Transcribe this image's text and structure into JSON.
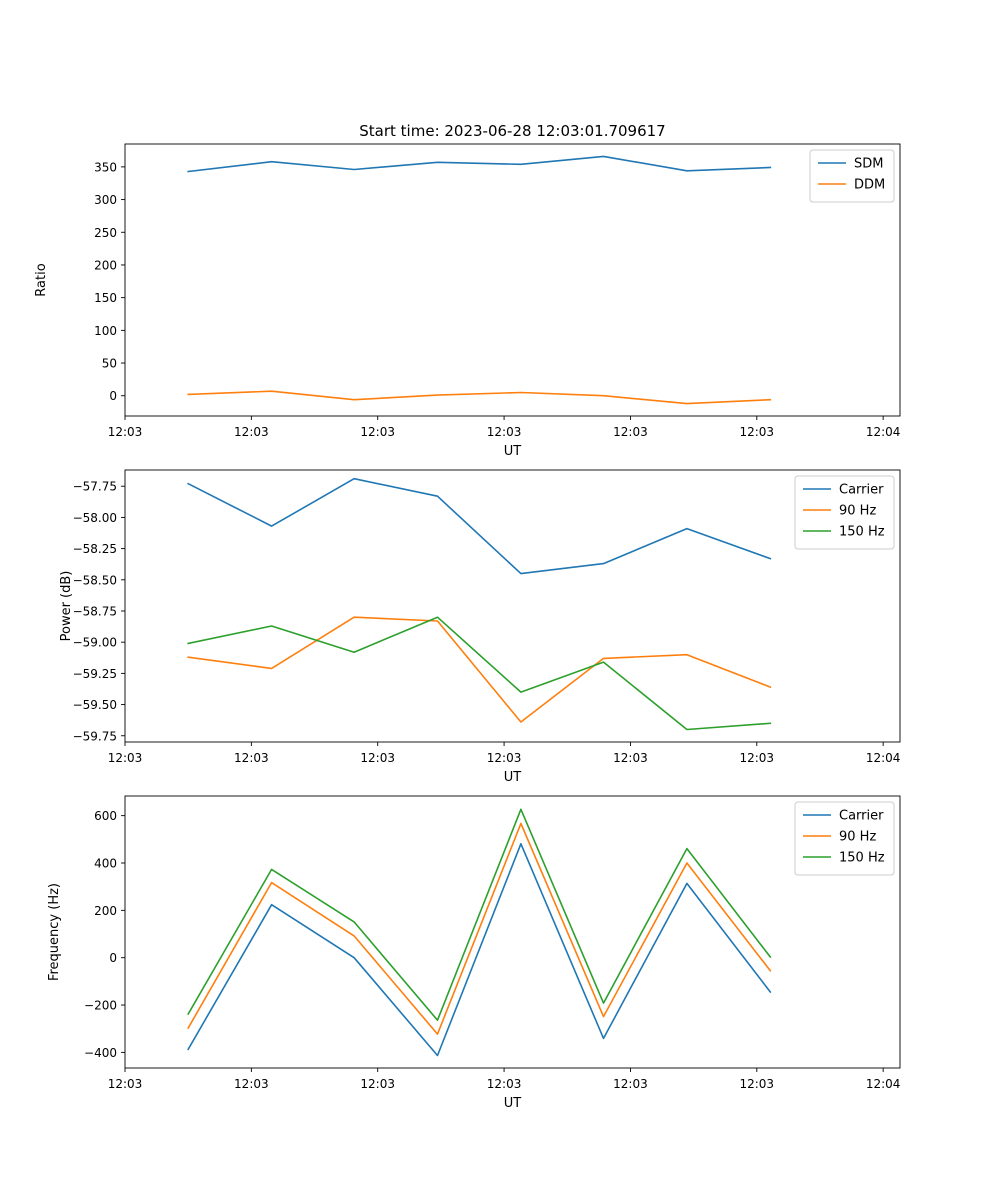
{
  "figure": {
    "title": "Start time: 2023-06-28 12:03:01.709617"
  },
  "chart_data": [
    {
      "type": "line",
      "xlabel": "UT",
      "ylabel": "Ratio",
      "ylim": [
        -31,
        385
      ],
      "yticks": [
        0,
        50,
        100,
        150,
        200,
        250,
        300,
        350
      ],
      "xlim": [
        0,
        9.2
      ],
      "xticks": [
        0,
        1.5,
        3,
        4.5,
        6,
        7.5,
        9
      ],
      "xtick_labels": [
        "12:03",
        "12:03",
        "12:03",
        "12:03",
        "12:03",
        "12:03",
        "12:04"
      ],
      "x": [
        0.75,
        1.74,
        2.72,
        3.71,
        4.7,
        5.68,
        6.67,
        7.66
      ],
      "grid": false,
      "legend": "upper right",
      "series": [
        {
          "name": "SDM",
          "color": "#1f77b4",
          "values": [
            343,
            358,
            346,
            357,
            354,
            366,
            344,
            349
          ]
        },
        {
          "name": "DDM",
          "color": "#ff7f0e",
          "values": [
            2,
            7,
            -6,
            1,
            5,
            0,
            -12,
            -6
          ]
        }
      ]
    },
    {
      "type": "line",
      "xlabel": "UT",
      "ylabel": "Power (dB)",
      "ylim": [
        -59.8,
        -57.62
      ],
      "yticks": [
        -59.75,
        -59.5,
        -59.25,
        -59.0,
        -58.75,
        -58.5,
        -58.25,
        -58.0,
        -57.75
      ],
      "ytick_labels": [
        "−59.75",
        "−59.50",
        "−59.25",
        "−59.00",
        "−58.75",
        "−58.50",
        "−58.25",
        "−58.00",
        "−57.75"
      ],
      "xlim": [
        0,
        9.2
      ],
      "xticks": [
        0,
        1.5,
        3,
        4.5,
        6,
        7.5,
        9
      ],
      "xtick_labels": [
        "12:03",
        "12:03",
        "12:03",
        "12:03",
        "12:03",
        "12:03",
        "12:04"
      ],
      "x": [
        0.75,
        1.74,
        2.72,
        3.71,
        4.7,
        5.68,
        6.67,
        7.66
      ],
      "grid": false,
      "legend": "upper right",
      "series": [
        {
          "name": "Carrier",
          "color": "#1f77b4",
          "values": [
            -57.73,
            -58.07,
            -57.69,
            -57.83,
            -58.45,
            -58.37,
            -58.09,
            -58.33
          ]
        },
        {
          "name": "90 Hz",
          "color": "#ff7f0e",
          "values": [
            -59.12,
            -59.21,
            -58.8,
            -58.83,
            -59.64,
            -59.13,
            -59.1,
            -59.36
          ]
        },
        {
          "name": "150 Hz",
          "color": "#2ca02c",
          "values": [
            -59.01,
            -58.87,
            -59.08,
            -58.8,
            -59.4,
            -59.16,
            -59.7,
            -59.65
          ]
        }
      ]
    },
    {
      "type": "line",
      "xlabel": "UT",
      "ylabel": "Frequency (Hz)",
      "ylim": [
        -466,
        683
      ],
      "yticks": [
        -400,
        -200,
        0,
        200,
        400,
        600
      ],
      "ytick_labels": [
        "−400",
        "−200",
        "0",
        "200",
        "400",
        "600"
      ],
      "xlim": [
        0,
        9.2
      ],
      "xticks": [
        0,
        1.5,
        3,
        4.5,
        6,
        7.5,
        9
      ],
      "xtick_labels": [
        "12:03",
        "12:03",
        "12:03",
        "12:03",
        "12:03",
        "12:03",
        "12:04"
      ],
      "x": [
        0.75,
        1.74,
        2.72,
        3.71,
        4.7,
        5.68,
        6.67,
        7.66
      ],
      "grid": false,
      "legend": "upper right",
      "series": [
        {
          "name": "Carrier",
          "color": "#1f77b4",
          "values": [
            -387,
            224,
            0,
            -413,
            481,
            -341,
            314,
            -145
          ]
        },
        {
          "name": "90 Hz",
          "color": "#ff7f0e",
          "values": [
            -297,
            317,
            92,
            -323,
            567,
            -249,
            400,
            -55
          ]
        },
        {
          "name": "150 Hz",
          "color": "#2ca02c",
          "values": [
            -238,
            373,
            151,
            -264,
            627,
            -192,
            461,
            3
          ]
        }
      ]
    }
  ]
}
